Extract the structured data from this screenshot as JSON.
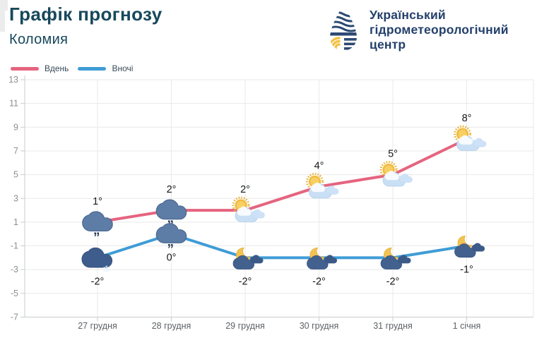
{
  "header": {
    "title": "Графік прогнозу",
    "subtitle": "Коломия"
  },
  "logo": {
    "lines": [
      "Український",
      "гідрометеорологічний",
      "центр"
    ]
  },
  "legend": {
    "items": [
      {
        "label": "Вдень",
        "color": "#e5647f"
      },
      {
        "label": "Вночі",
        "color": "#3f9cd6"
      }
    ]
  },
  "chart_data": {
    "type": "line",
    "title": "Графік прогнозу",
    "subtitle": "Коломия",
    "categories": [
      "27 грудня",
      "28 грудня",
      "29 грудня",
      "30 грудня",
      "31 грудня",
      "1 січня"
    ],
    "series": [
      {
        "name": "Вдень",
        "color": "#e5647f",
        "values": [
          1,
          2,
          2,
          4,
          5,
          8
        ],
        "point_labels": [
          "1°",
          "2°",
          "2°",
          "4°",
          "5°",
          "8°"
        ],
        "icons": [
          "rain-cloud",
          "rain-cloud",
          "sun-cloud",
          "sun-cloud",
          "sun-cloud",
          "sun-cloud"
        ]
      },
      {
        "name": "Вночі",
        "color": "#3f9cd6",
        "values": [
          -2,
          0,
          -2,
          -2,
          -2,
          -1
        ],
        "point_labels": [
          "-2°",
          "0°",
          "-2°",
          "-2°",
          "-2°",
          "-1°"
        ],
        "icons": [
          "snow-cloud",
          "rain-cloud",
          "moon-cloud",
          "moon-cloud",
          "moon-cloud",
          "moon-cloud"
        ]
      }
    ],
    "ylim": [
      -7,
      13
    ],
    "yticks": [
      13,
      11,
      9,
      7,
      5,
      3,
      1,
      -1,
      -3,
      -5,
      -7
    ],
    "grid": true,
    "legend_position": "top-left",
    "xlabel": "",
    "ylabel": ""
  }
}
